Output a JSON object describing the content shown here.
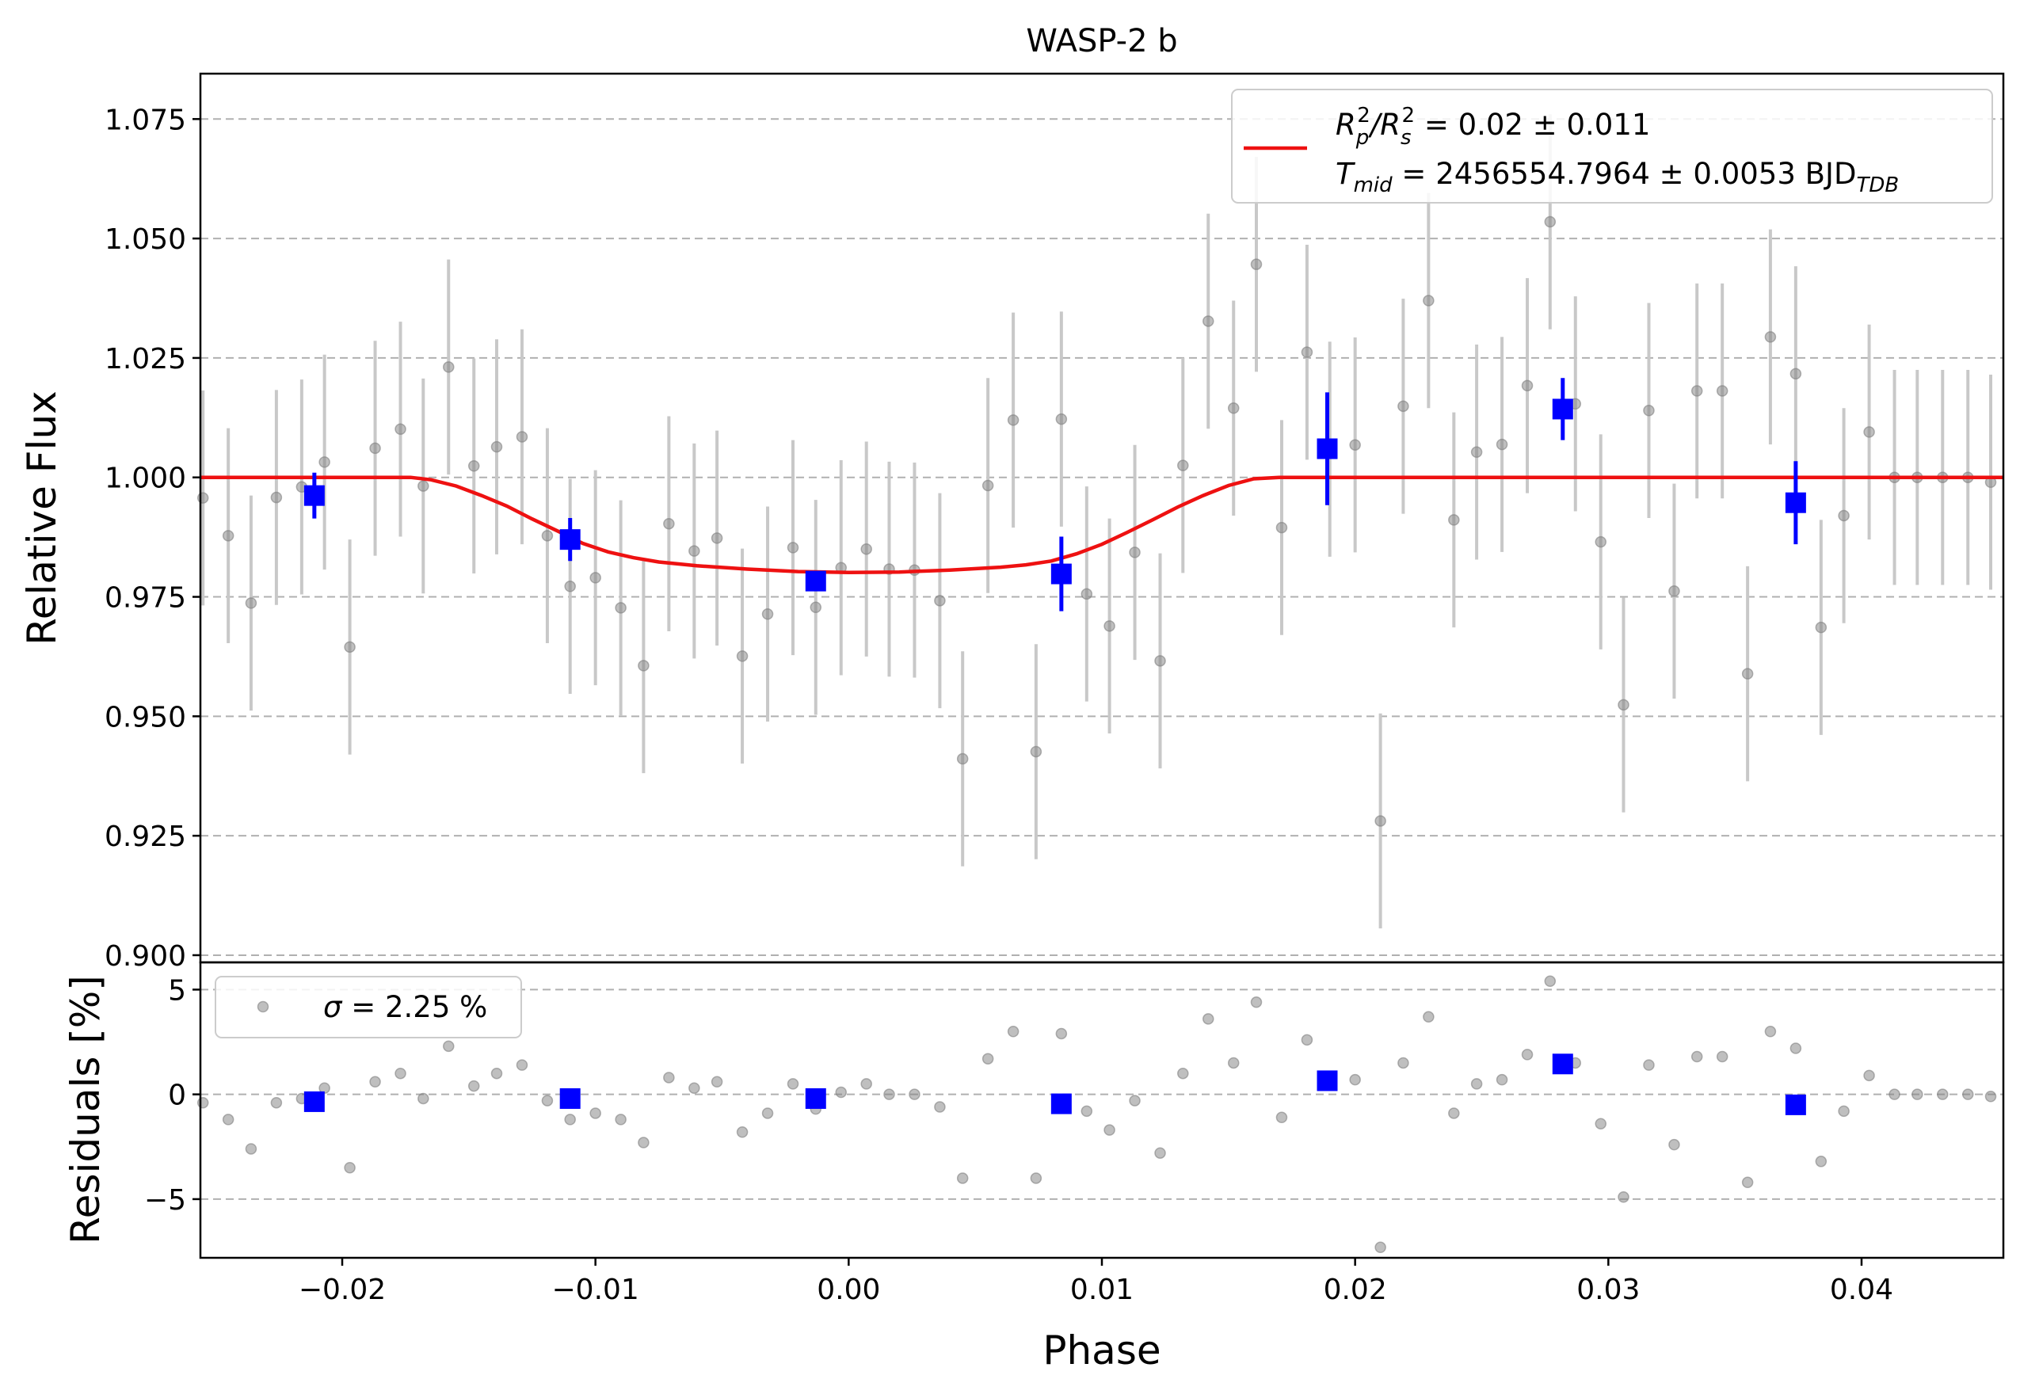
{
  "chart_data": [
    {
      "type": "scatter",
      "panel": "light curve",
      "title": "WASP-2 b",
      "xlabel": "",
      "ylabel": "Relative Flux",
      "xlim": [
        -0.0256,
        0.0456
      ],
      "ylim": [
        0.8985,
        1.0845
      ],
      "yticks": [
        0.9,
        0.925,
        0.95,
        0.975,
        1.0,
        1.025,
        1.05,
        1.075
      ],
      "ytick_labels": [
        "0.900",
        "0.925",
        "0.950",
        "0.975",
        "1.000",
        "1.025",
        "1.050",
        "1.075"
      ],
      "grid": "horizontal dashed",
      "legend_position": "top-right",
      "legend": {
        "line1": {
          "prefix": "R",
          "sub1": "p",
          "sup1": "2",
          "mid": "/R",
          "sub2": "s",
          "sup2": "2",
          "rest": " = 0.02 ± 0.011"
        },
        "line2": {
          "prefix": "T",
          "sub": "mid",
          "rest": " = 2456554.7964 ± 0.0053 BJD",
          "sub_end": "TDB"
        }
      },
      "colors": {
        "data": "#808080",
        "errorbar": "#c8c8c8",
        "binned": "#0000ff",
        "model": "#ee1111",
        "grid": "#b0b0b0"
      },
      "series": [
        {
          "kind": "data",
          "err": 0.0225,
          "x": [
            -0.0255,
            -0.0245,
            -0.0236,
            -0.0226,
            -0.0216,
            -0.0207,
            -0.0197,
            -0.0187,
            -0.0177,
            -0.0168,
            -0.0158,
            -0.0148,
            -0.0139,
            -0.0129,
            -0.0119,
            -0.011,
            -0.01,
            -0.009,
            -0.0081,
            -0.0071,
            -0.0061,
            -0.0052,
            -0.0042,
            -0.0032,
            -0.0022,
            -0.0013,
            -0.0003,
            0.0007,
            0.0016,
            0.0026,
            0.0036,
            0.0045,
            0.0055,
            0.0065,
            0.0074,
            0.0084,
            0.0094,
            0.0103,
            0.0113,
            0.0123,
            0.0132,
            0.0142,
            0.0152,
            0.0161,
            0.0171,
            0.0181,
            0.019,
            0.02,
            0.021,
            0.0219,
            0.0229,
            0.0239,
            0.0248,
            0.0258,
            0.0268,
            0.0277,
            0.0287,
            0.0297,
            0.0306,
            0.0316,
            0.0326,
            0.0335,
            0.0345,
            0.0355,
            0.0364,
            0.0374,
            0.0384,
            0.0393,
            0.0403,
            0.0413,
            0.0422,
            0.0432,
            0.0442,
            0.0451
          ],
          "y": [
            0.9957,
            0.9878,
            0.9737,
            0.9958,
            0.998,
            1.0032,
            0.9645,
            1.0061,
            1.0101,
            0.9982,
            1.0231,
            1.0024,
            1.0064,
            1.0085,
            0.9878,
            0.9772,
            0.979,
            0.9727,
            0.9606,
            0.9903,
            0.9846,
            0.9873,
            0.9626,
            0.9714,
            0.9853,
            0.9728,
            0.9811,
            0.985,
            0.9808,
            0.9806,
            0.9742,
            0.9411,
            0.9983,
            1.012,
            0.9426,
            1.0122,
            0.9756,
            0.9689,
            0.9843,
            0.9616,
            1.0025,
            1.0327,
            1.0145,
            1.0446,
            0.9895,
            1.0262,
            1.0059,
            1.0068,
            0.9281,
            1.0149,
            1.037,
            0.9911,
            1.0053,
            1.0069,
            1.0192,
            1.0535,
            1.0154,
            0.9865,
            0.9524,
            1.014,
            0.9762,
            1.0181,
            1.0181,
            0.9589,
            1.0294,
            1.0217,
            0.9686,
            0.992,
            1.0095,
            1.0,
            1.0,
            1.0,
            1.0,
            0.999
          ]
        },
        {
          "kind": "binned",
          "x": [
            -0.0211,
            -0.011,
            -0.0013,
            0.0084,
            0.0189,
            0.0282,
            0.0374
          ],
          "y": [
            0.9962,
            0.987,
            0.9783,
            0.9798,
            1.006,
            1.0143,
            0.9947
          ],
          "err": [
            0.0048,
            0.0045,
            0.002,
            0.0078,
            0.0118,
            0.0065,
            0.0087
          ]
        },
        {
          "kind": "model",
          "x": [
            -0.0256,
            -0.0173,
            -0.0165,
            -0.0155,
            -0.0145,
            -0.0135,
            -0.0125,
            -0.0115,
            -0.0105,
            -0.0095,
            -0.0085,
            -0.0075,
            -0.006,
            -0.004,
            -0.002,
            0.0,
            0.002,
            0.004,
            0.006,
            0.007,
            0.008,
            0.009,
            0.01,
            0.011,
            0.012,
            0.013,
            0.014,
            0.015,
            0.016,
            0.017,
            0.0456
          ],
          "y": [
            1.0,
            1.0,
            0.9995,
            0.9982,
            0.9962,
            0.994,
            0.9913,
            0.9888,
            0.9862,
            0.9844,
            0.9832,
            0.9823,
            0.9815,
            0.9808,
            0.9803,
            0.9801,
            0.9802,
            0.9806,
            0.9812,
            0.9817,
            0.9825,
            0.984,
            0.986,
            0.9885,
            0.9911,
            0.9938,
            0.9962,
            0.9983,
            0.9997,
            1.0,
            1.0
          ]
        }
      ]
    },
    {
      "type": "scatter",
      "panel": "residuals",
      "xlabel": "Phase",
      "ylabel": "Residuals [%]",
      "xlim": [
        -0.0256,
        0.0456
      ],
      "ylim": [
        -7.8,
        6.3
      ],
      "xticks": [
        -0.02,
        -0.01,
        0.0,
        0.01,
        0.02,
        0.03,
        0.04
      ],
      "xtick_labels": [
        "−0.02",
        "−0.01",
        "0.00",
        "0.01",
        "0.02",
        "0.03",
        "0.04"
      ],
      "yticks": [
        -5,
        0,
        5
      ],
      "ytick_labels": [
        "−5",
        "0",
        "5"
      ],
      "grid": "horizontal dashed",
      "legend_position": "top-left",
      "legend": {
        "sigma_symbol": "σ",
        "label": " = 2.25 %"
      },
      "series": [
        {
          "kind": "data",
          "x": [
            -0.0255,
            -0.0245,
            -0.0236,
            -0.0226,
            -0.0216,
            -0.0207,
            -0.0197,
            -0.0187,
            -0.0177,
            -0.0168,
            -0.0158,
            -0.0148,
            -0.0139,
            -0.0129,
            -0.0119,
            -0.011,
            -0.01,
            -0.009,
            -0.0081,
            -0.0071,
            -0.0061,
            -0.0052,
            -0.0042,
            -0.0032,
            -0.0022,
            -0.0013,
            -0.0003,
            0.0007,
            0.0016,
            0.0026,
            0.0036,
            0.0045,
            0.0055,
            0.0065,
            0.0074,
            0.0084,
            0.0094,
            0.0103,
            0.0113,
            0.0123,
            0.0132,
            0.0142,
            0.0152,
            0.0161,
            0.0171,
            0.0181,
            0.019,
            0.02,
            0.021,
            0.0219,
            0.0229,
            0.0239,
            0.0248,
            0.0258,
            0.0268,
            0.0277,
            0.0287,
            0.0297,
            0.0306,
            0.0316,
            0.0326,
            0.0335,
            0.0345,
            0.0355,
            0.0364,
            0.0374,
            0.0384,
            0.0393,
            0.0403,
            0.0413,
            0.0422,
            0.0432,
            0.0442,
            0.0451
          ],
          "y": [
            -0.4,
            -1.2,
            -2.6,
            -0.4,
            -0.2,
            0.3,
            -3.5,
            0.6,
            1.0,
            -0.2,
            2.3,
            0.4,
            1.0,
            1.4,
            -0.3,
            -1.2,
            -0.9,
            -1.2,
            -2.3,
            0.8,
            0.3,
            0.6,
            -1.8,
            -0.9,
            0.5,
            -0.7,
            0.1,
            0.5,
            0.0,
            0.0,
            -0.6,
            -4.0,
            1.7,
            3.0,
            -4.0,
            2.9,
            -0.8,
            -1.7,
            -0.3,
            -2.8,
            1.0,
            3.6,
            1.5,
            4.4,
            -1.1,
            2.6,
            0.6,
            0.7,
            -7.3,
            1.5,
            3.7,
            -0.9,
            0.5,
            0.7,
            1.9,
            5.4,
            1.5,
            -1.4,
            -4.9,
            1.4,
            -2.4,
            1.8,
            1.8,
            -4.2,
            3.0,
            2.2,
            -3.2,
            -0.8,
            0.9,
            0.0,
            0.0,
            0.0,
            0.0,
            -0.1
          ]
        },
        {
          "kind": "binned",
          "x": [
            -0.0211,
            -0.011,
            -0.0013,
            0.0084,
            0.0189,
            0.0282,
            0.0374
          ],
          "y": [
            -0.35,
            -0.2,
            -0.2,
            -0.45,
            0.65,
            1.45,
            -0.5
          ]
        }
      ]
    }
  ]
}
